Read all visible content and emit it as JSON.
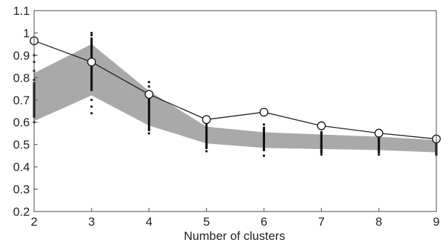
{
  "chart_data": {
    "type": "line",
    "title": "",
    "xlabel": "Number of clusters",
    "ylabel": "",
    "x": [
      2,
      3,
      4,
      5,
      6,
      7,
      8,
      9
    ],
    "xticks": [
      "2",
      "3",
      "4",
      "5",
      "6",
      "7",
      "8",
      "9"
    ],
    "yticks": [
      "0.2",
      "0.3",
      "0.4",
      "0.5",
      "0.6",
      "0.7",
      "0.8",
      "0.9",
      "1",
      "1.1"
    ],
    "xlim": [
      2,
      9
    ],
    "ylim": [
      0.2,
      1.1
    ],
    "grid": false,
    "series": [
      {
        "kind": "line-markers",
        "marker": "circle",
        "values": [
          0.965,
          0.87,
          0.725,
          0.612,
          0.645,
          0.584,
          0.551,
          0.525
        ]
      },
      {
        "kind": "band",
        "upper": [
          0.82,
          0.95,
          0.74,
          0.58,
          0.555,
          0.545,
          0.535,
          0.52
        ],
        "lower": [
          0.605,
          0.72,
          0.585,
          0.505,
          0.485,
          0.48,
          0.475,
          0.465
        ]
      },
      {
        "kind": "point-columns",
        "columns": [
          {
            "x": 2,
            "solid": [
              0.62,
              0.78
            ],
            "dots": [
              0.6,
              0.63,
              0.79,
              0.83,
              0.87,
              0.9
            ]
          },
          {
            "x": 3,
            "solid": [
              0.74,
              0.98
            ],
            "dots": [
              0.64,
              0.67,
              0.7,
              0.99,
              1.0
            ]
          },
          {
            "x": 4,
            "solid": [
              0.56,
              0.73
            ],
            "dots": [
              0.55,
              0.74,
              0.76,
              0.78
            ]
          },
          {
            "x": 5,
            "solid": [
              0.48,
              0.6
            ],
            "dots": [
              0.47,
              0.61
            ]
          },
          {
            "x": 6,
            "solid": [
              0.47,
              0.58
            ],
            "dots": [
              0.45,
              0.59
            ]
          },
          {
            "x": 7,
            "solid": [
              0.46,
              0.56
            ],
            "dots": [
              0.455
            ]
          },
          {
            "x": 8,
            "solid": [
              0.46,
              0.54
            ],
            "dots": [
              0.455
            ]
          },
          {
            "x": 9,
            "solid": [
              0.45,
              0.52
            ],
            "dots": []
          }
        ]
      }
    ],
    "colors": {
      "band": "#a9a9a9",
      "line": "#1a1a1a",
      "points": "#111111",
      "frame": "#444444"
    }
  }
}
